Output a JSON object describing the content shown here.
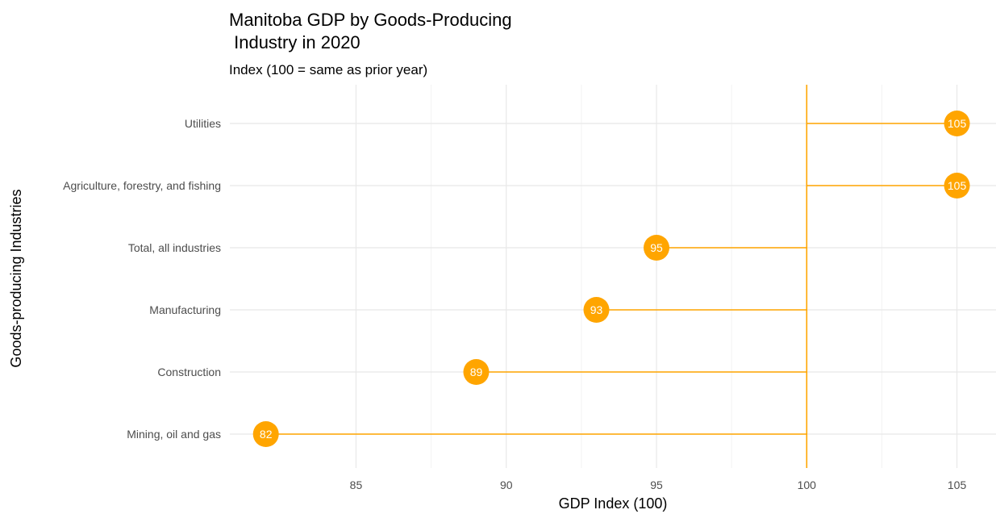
{
  "chart_data": {
    "type": "lollipop",
    "title_line1": "Manitoba GDP by Goods-Producing",
    "title_line2": " Industry in 2020",
    "subtitle": "Index (100 = same as prior year)",
    "xlabel": "GDP Index (100)",
    "ylabel": "Goods-producing Industries",
    "baseline": 100,
    "xlim": [
      80.8,
      106.3
    ],
    "x_ticks": [
      85,
      90,
      95,
      100,
      105
    ],
    "x_tick_labels": [
      "85",
      "90",
      "95",
      "100",
      "105"
    ],
    "categories": [
      "Utilities",
      "Agriculture, forestry, and fishing",
      "Total, all industries",
      "Manufacturing",
      "Construction",
      "Mining, oil and gas"
    ],
    "values": [
      105,
      105,
      95,
      93,
      89,
      82
    ],
    "point_labels": [
      "105",
      "105",
      "95",
      "93",
      "89",
      "82"
    ],
    "color": "#FFA500",
    "grid": true,
    "legend": "none"
  }
}
